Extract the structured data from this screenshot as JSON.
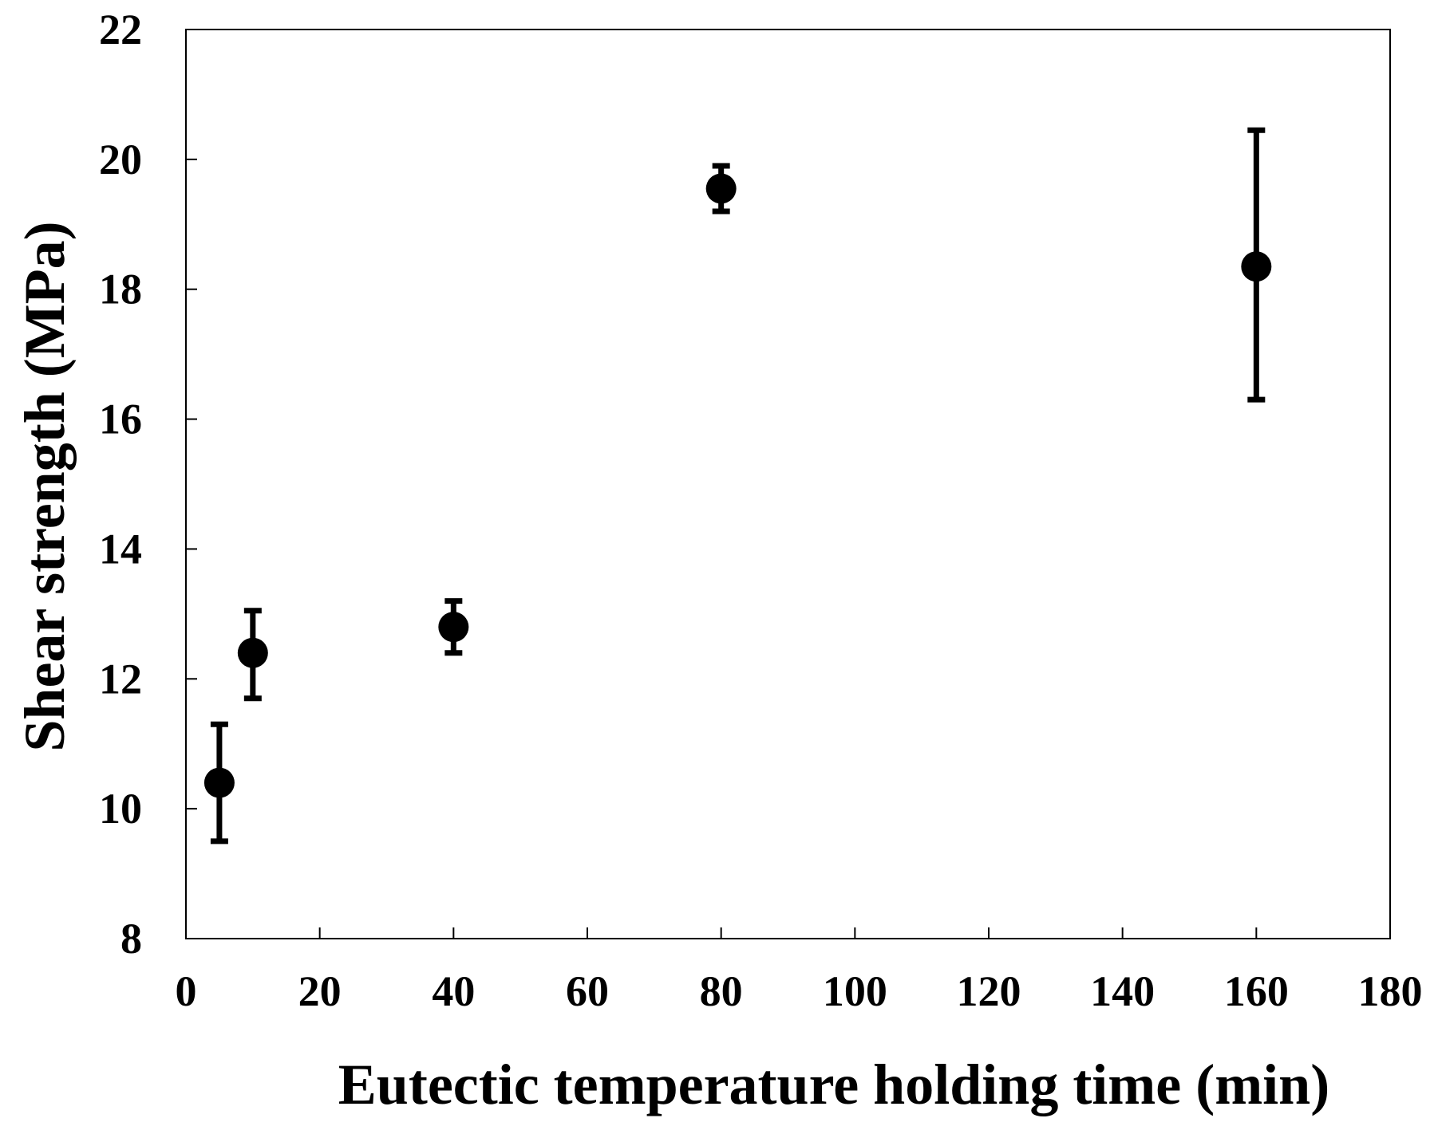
{
  "chart_data": {
    "type": "scatter",
    "title": "",
    "xlabel": "Eutectic temperature holding time (min)",
    "ylabel": "Shear strength (MPa)",
    "xlim": [
      0,
      180
    ],
    "ylim": [
      8,
      22
    ],
    "xticks": [
      0,
      20,
      40,
      60,
      80,
      100,
      120,
      140,
      160,
      180
    ],
    "yticks": [
      8,
      10,
      12,
      14,
      16,
      18,
      20,
      22
    ],
    "grid": false,
    "legend": "none",
    "marker_color": "#000000",
    "series": [
      {
        "points": [
          {
            "x": 5,
            "y": 10.4,
            "err_low": 9.5,
            "err_high": 11.3
          },
          {
            "x": 10,
            "y": 12.4,
            "err_low": 11.7,
            "err_high": 13.05
          },
          {
            "x": 40,
            "y": 12.8,
            "err_low": 12.4,
            "err_high": 13.2
          },
          {
            "x": 80,
            "y": 19.55,
            "err_low": 19.2,
            "err_high": 19.9
          },
          {
            "x": 160,
            "y": 18.35,
            "err_low": 16.3,
            "err_high": 20.45
          }
        ]
      }
    ]
  }
}
